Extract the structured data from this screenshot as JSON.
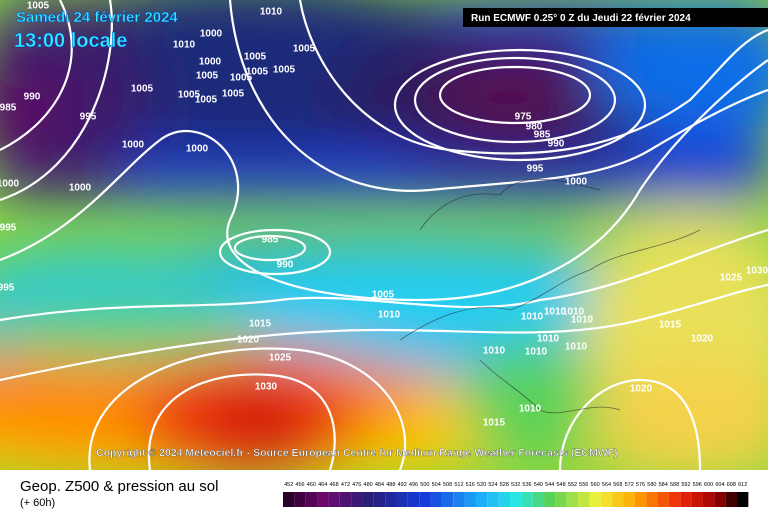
{
  "header": {
    "date": "Samedi 24 février 2024",
    "time": "13:00 locale",
    "run": "Run ECMWF 0.25° 0 Z du Jeudi 22 février 2024"
  },
  "copyright": "Copyright © 2024 Meteociel.fr - Source European Centre for Medium-Range Weather Forecasts (ECMWF)",
  "footer": {
    "title": "Geop. Z500 & pression au sol",
    "subtitle": "(+ 60h)"
  },
  "scale_labels": [
    "452",
    "456",
    "460",
    "464",
    "468",
    "472",
    "476",
    "480",
    "484",
    "488",
    "492",
    "496",
    "500",
    "504",
    "508",
    "512",
    "516",
    "520",
    "524",
    "528",
    "532",
    "536",
    "540",
    "544",
    "548",
    "552",
    "556",
    "560",
    "564",
    "568",
    "572",
    "576",
    "580",
    "584",
    "588",
    "592",
    "596",
    "600",
    "604",
    "608",
    "612"
  ],
  "isobar_labels": [
    "1005",
    "1010",
    "1000",
    "1010",
    "1000",
    "1005",
    "1005",
    "1005",
    "1005",
    "1005",
    "1005",
    "1005",
    "1005",
    "1005",
    "1005",
    "990",
    "985",
    "995",
    "1000",
    "1000",
    "975",
    "980",
    "985",
    "990",
    "995",
    "1000",
    "1000",
    "1000",
    "995",
    "985",
    "990",
    "1025",
    "1030",
    "995",
    "1005",
    "1010",
    "1015",
    "1010",
    "1010",
    "1010",
    "1010",
    "1015",
    "1020",
    "1020",
    "1010",
    "1010",
    "1010",
    "1010",
    "1025",
    "1030",
    "1020",
    "1010",
    "1015"
  ]
}
